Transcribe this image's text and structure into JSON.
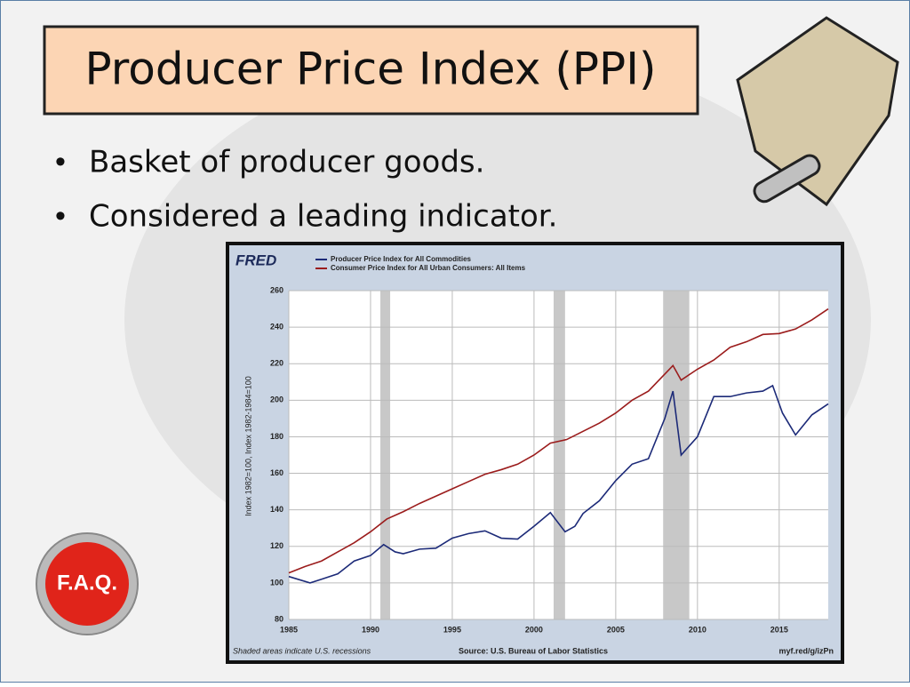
{
  "slide": {
    "title": "Producer Price Index (PPI)",
    "bullets": [
      "Basket of producer goods.",
      "Considered a leading indicator."
    ],
    "button": "F.A.Q."
  },
  "chart_data": {
    "type": "line",
    "logo": "FRED",
    "y_label": "Index 1982=100, Index 1982-1984=100",
    "note": "Shaded areas indicate U.S. recessions",
    "source": "Source: U.S. Bureau of Labor Statistics",
    "link": "myf.red/g/izPn",
    "xlim": [
      1985,
      2018
    ],
    "xticks": [
      1985,
      1990,
      1995,
      2000,
      2005,
      2010,
      2015
    ],
    "ylim": [
      80,
      260
    ],
    "yticks": [
      80,
      100,
      120,
      140,
      160,
      180,
      200,
      220,
      240,
      260
    ],
    "grid": true,
    "recessions": [
      [
        1990.6,
        1991.2
      ],
      [
        2001.2,
        2001.9
      ],
      [
        2007.9,
        2009.5
      ]
    ],
    "series": [
      {
        "name": "Producer Price Index for All Commodities",
        "color": "#1c2a78",
        "x": [
          1985,
          1986.3,
          1987,
          1988,
          1989,
          1990,
          1990.8,
          1991.5,
          1992,
          1993,
          1994,
          1995,
          1996,
          1997,
          1998,
          1999,
          2000,
          2001,
          2001.9,
          2002.5,
          2003,
          2004,
          2005,
          2006,
          2007,
          2008,
          2008.5,
          2009,
          2010,
          2011,
          2012,
          2013,
          2014,
          2014.6,
          2015.2,
          2016,
          2017,
          2018
        ],
        "values": [
          103.5,
          100,
          102,
          105,
          112,
          115,
          121,
          117,
          116,
          118.5,
          119,
          124.5,
          127,
          128.5,
          124.5,
          124,
          131,
          138.5,
          128,
          131,
          138,
          145,
          156,
          165,
          168,
          190,
          205,
          170,
          180,
          202,
          202,
          204,
          205,
          208,
          193,
          181,
          192,
          198
        ]
      },
      {
        "name": "Consumer Price Index for All Urban Consumers: All Items",
        "color": "#9b1c1c",
        "x": [
          1985,
          1986,
          1987,
          1988,
          1989,
          1990,
          1991,
          1992,
          1993,
          1994,
          1995,
          1996,
          1997,
          1998,
          1999,
          2000,
          2001,
          2002,
          2003,
          2004,
          2005,
          2006,
          2007,
          2008.5,
          2009,
          2010,
          2011,
          2012,
          2013,
          2014,
          2015,
          2016,
          2017,
          2018
        ],
        "values": [
          105.5,
          109,
          112,
          117,
          122,
          128,
          135,
          139,
          143.5,
          147.5,
          151.5,
          155.5,
          159.5,
          162,
          165,
          170,
          176.5,
          178.5,
          183,
          187.5,
          193,
          200,
          205,
          219,
          211,
          217,
          222,
          229,
          232,
          236,
          236.5,
          239,
          244,
          250
        ]
      }
    ]
  }
}
